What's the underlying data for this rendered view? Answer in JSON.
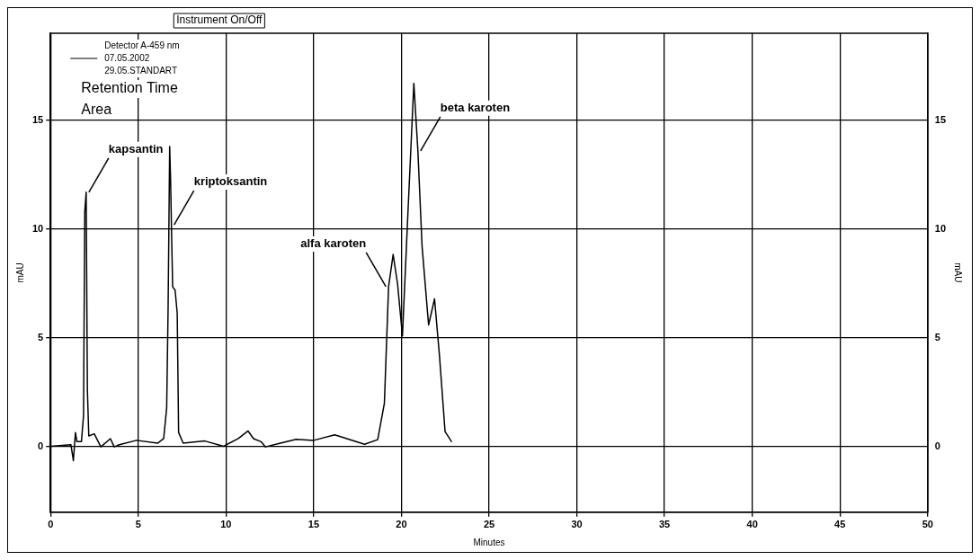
{
  "chart_data": {
    "type": "line",
    "title": "Instrument On/Off",
    "xlabel": "Minutes",
    "ylabel": "mAU",
    "y2label": "mAU",
    "legend_title": "Detector A-459 nm",
    "legend": "top left",
    "grid": true,
    "line_style": "solid",
    "marker": "none",
    "xlim": [
      0,
      50
    ],
    "xticks": [
      0,
      5,
      10,
      15,
      20,
      25,
      30,
      35,
      40,
      45,
      50
    ],
    "ylim": [
      -3,
      19
    ],
    "yticks": [
      0,
      5,
      10,
      15
    ],
    "y2lim": [
      -3,
      19
    ],
    "y2ticks": [
      0,
      5,
      10,
      15
    ],
    "annotations": [
      "Retention Time",
      "Area",
      {
        "text": "kapsantin",
        "x": 2.03,
        "y": 11.7
      },
      {
        "text": "kriptoksantin",
        "x": 6.89,
        "y": 10.2
      },
      {
        "text": "alfa karoten",
        "x": 19.27,
        "y": 7.36
      },
      {
        "text": "beta karoten",
        "x": 20.94,
        "y": 13.6
      }
    ],
    "series": [
      {
        "name": "07.05.2002 29.05.STANDART",
        "color": "#000000",
        "x": [
          0,
          1.16,
          1.3,
          1.42,
          1.5,
          1.76,
          1.88,
          1.95,
          2.03,
          2.1,
          2.18,
          2.49,
          2.87,
          3.41,
          3.63,
          3.92,
          4.9,
          6.1,
          6.45,
          6.62,
          6.7,
          6.79,
          6.84,
          6.89,
          6.96,
          7.1,
          7.22,
          7.3,
          7.56,
          8.8,
          9.86,
          10.7,
          11.26,
          11.57,
          12.0,
          12.25,
          13.0,
          14.0,
          15.0,
          16.2,
          17.9,
          18.65,
          19.03,
          19.27,
          19.53,
          19.78,
          20.06,
          20.37,
          20.71,
          20.94,
          21.18,
          21.55,
          21.89,
          22.17,
          22.49,
          22.87
        ],
        "values": [
          0.03,
          0.1,
          -0.63,
          0.66,
          0.24,
          0.24,
          1.44,
          10.8,
          11.7,
          2.6,
          0.5,
          0.6,
          0.0,
          0.38,
          0.0,
          0.1,
          0.3,
          0.17,
          0.38,
          1.8,
          6.3,
          13.8,
          12.35,
          10.2,
          7.35,
          7.2,
          6.15,
          0.66,
          0.17,
          0.27,
          0.03,
          0.38,
          0.73,
          0.38,
          0.24,
          0.0,
          0.15,
          0.35,
          0.3,
          0.55,
          0.12,
          0.33,
          2.0,
          7.36,
          8.84,
          7.5,
          5.1,
          10.7,
          16.7,
          13.6,
          9.2,
          5.6,
          6.8,
          4.2,
          0.7,
          0.23
        ]
      }
    ]
  }
}
